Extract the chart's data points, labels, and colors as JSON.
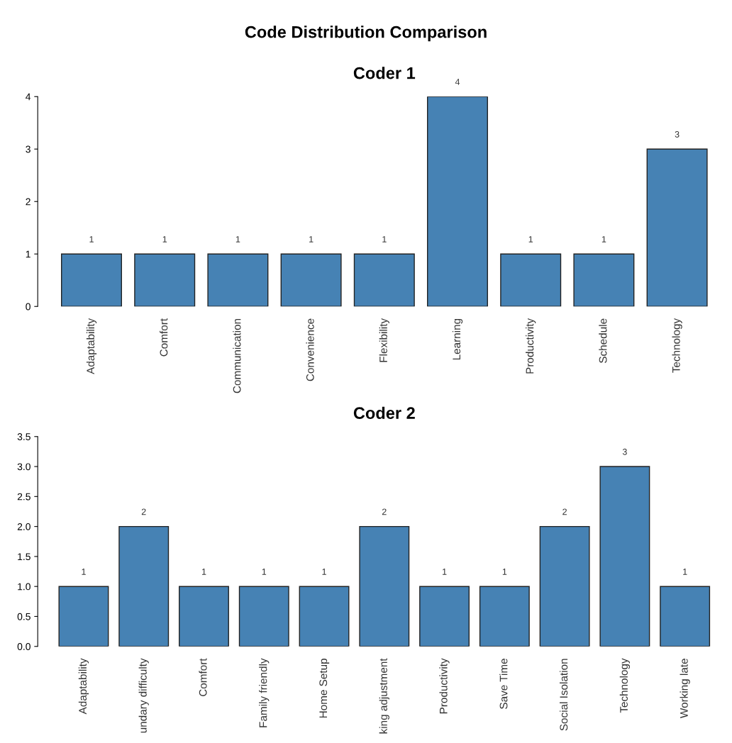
{
  "chart_data": [
    {
      "type": "bar",
      "title": "Coder 1",
      "categories": [
        "Adaptability",
        "Comfort",
        "Communication",
        "Convenience",
        "Flexibility",
        "Learning",
        "Productivity",
        "Schedule",
        "Technology"
      ],
      "values": [
        1,
        1,
        1,
        1,
        1,
        4,
        1,
        1,
        3
      ],
      "color": "#4682b4",
      "ylim": [
        0,
        4
      ],
      "yticks": [
        0,
        1,
        2,
        3,
        4
      ],
      "grid": false,
      "data_labels": true
    },
    {
      "type": "bar",
      "title": "Coder 2",
      "categories": [
        "Adaptability",
        "undary difficulty",
        "Comfort",
        "Family friendly",
        "Home Setup",
        "king adjustment",
        "Productivity",
        "Save Time",
        "Social Isolation",
        "Technology",
        "Working late"
      ],
      "values": [
        1,
        2,
        1,
        1,
        1,
        2,
        1,
        1,
        2,
        3,
        1
      ],
      "color": "#4682b4",
      "ylim": [
        0,
        3.5
      ],
      "yticks": [
        {
          "value": 0,
          "label": "0.0"
        },
        0.5,
        {
          "value": 1,
          "label": "1.0"
        },
        1.5,
        {
          "value": 2,
          "label": "2.0"
        },
        2.5,
        {
          "value": 3,
          "label": "3.0"
        },
        3.5
      ],
      "grid": false,
      "data_labels": true,
      "annotations": [
        "Code Distribution Comparison"
      ]
    }
  ]
}
